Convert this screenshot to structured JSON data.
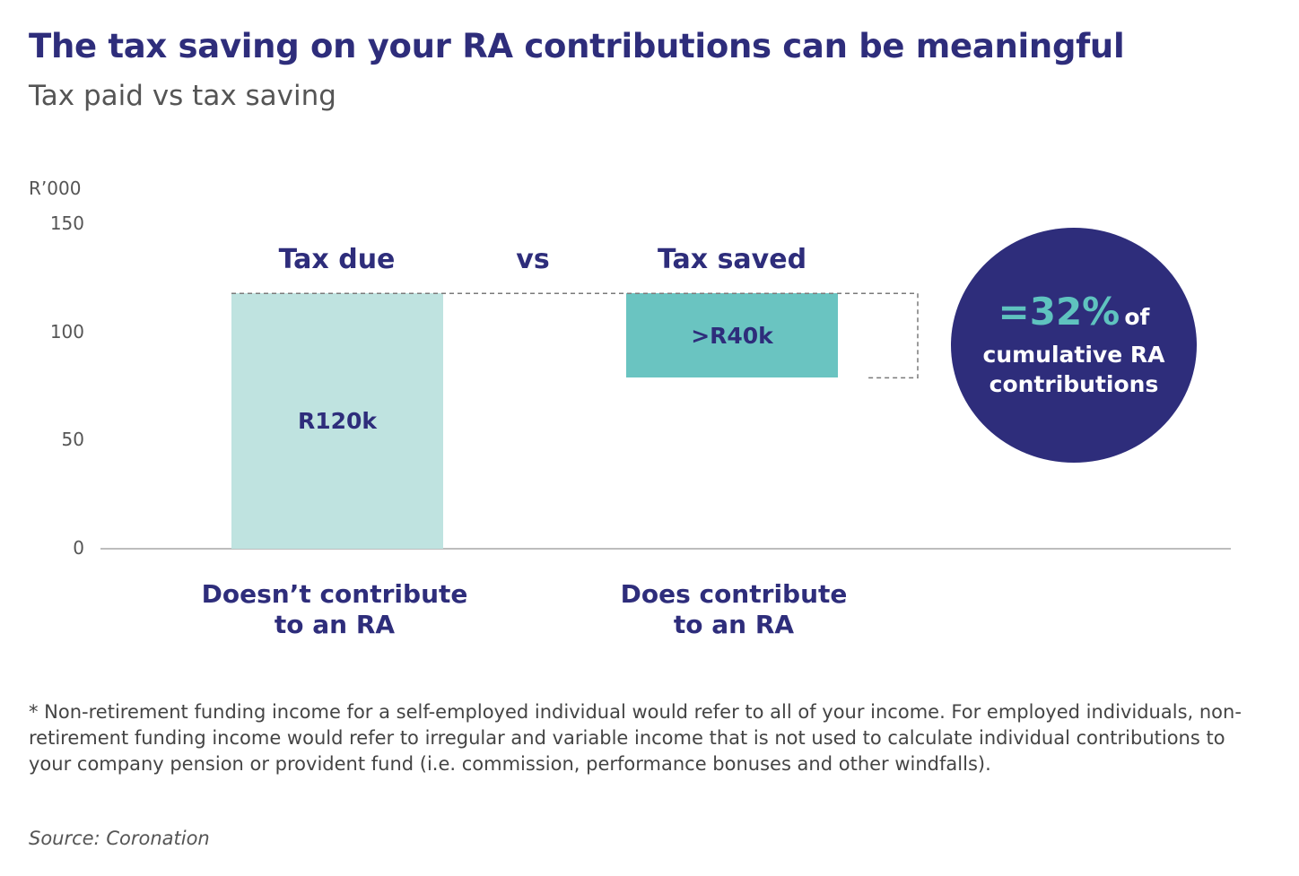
{
  "header": {
    "title": "The tax saving on your RA contributions can be meaningful",
    "subtitle": "Tax paid vs tax saving"
  },
  "chart_data": {
    "type": "bar",
    "ylabel": "R’000",
    "ylim": [
      0,
      150
    ],
    "yticks": [
      "150",
      "100",
      "50",
      "0"
    ],
    "grid": false,
    "categories": [
      "Doesn’t contribute to an RA",
      "Does contribute to an RA"
    ],
    "category_lines": [
      [
        "Doesn’t contribute",
        "to an RA"
      ],
      [
        "Does contribute",
        "to an RA"
      ]
    ],
    "column_headers": [
      "Tax due",
      "vs",
      "Tax saved"
    ],
    "bars": [
      {
        "category": "Doesn’t contribute to an RA",
        "bottom": 0,
        "top": 118,
        "label": "R120k",
        "color": "#bfe3e0"
      },
      {
        "category": "Does contribute to an RA",
        "bottom": 79,
        "top": 118,
        "label": ">R40k",
        "color": "#6ac4c1"
      }
    ],
    "annotation": {
      "highlight": "=32%",
      "suffix": "of",
      "line2": "cumulative RA",
      "line3": "contributions",
      "circle_color": "#2e2d7b",
      "highlight_color": "#5fc3bf"
    }
  },
  "footnote": "* Non-retirement funding income for a self-employed individual would refer to all of your income. For employed individuals, non-retirement funding income would refer to irregular and variable income that is not used to calculate individual contributions to your company pension or provident fund (i.e. commission, performance bonuses and other windfalls).",
  "source": "Source: Coronation"
}
